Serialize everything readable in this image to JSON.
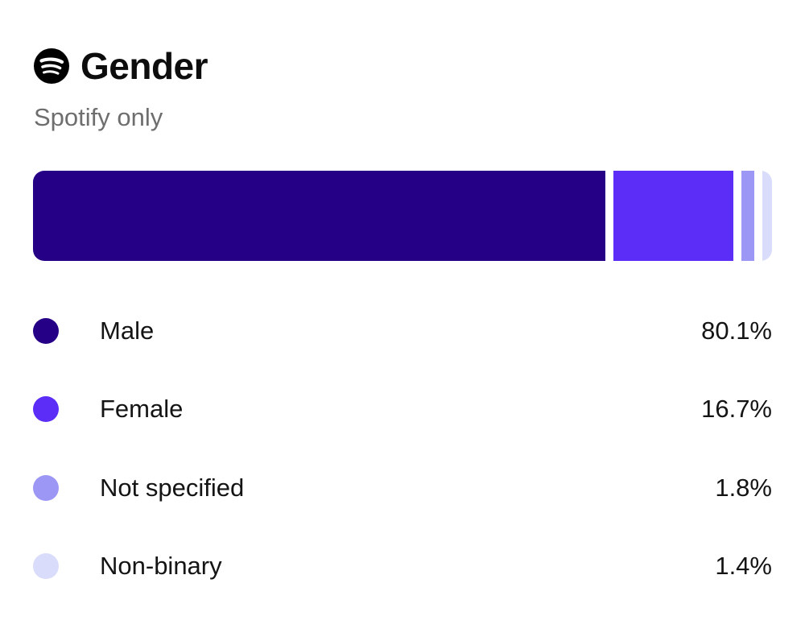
{
  "header": {
    "icon": "spotify-icon",
    "title": "Gender",
    "subtitle": "Spotify only"
  },
  "colors": {
    "male": "#250087",
    "female": "#5b2df7",
    "not_specified": "#9c96f5",
    "non_binary": "#d9dcfb"
  },
  "breakdown": [
    {
      "label": "Male",
      "value": "80.1%",
      "share": 80.1,
      "color": "#250087"
    },
    {
      "label": "Female",
      "value": "16.7%",
      "share": 16.7,
      "color": "#5b2df7"
    },
    {
      "label": "Not specified",
      "value": "1.8%",
      "share": 1.8,
      "color": "#9c96f5"
    },
    {
      "label": "Non-binary",
      "value": "1.4%",
      "share": 1.4,
      "color": "#d9dcfb"
    }
  ]
}
